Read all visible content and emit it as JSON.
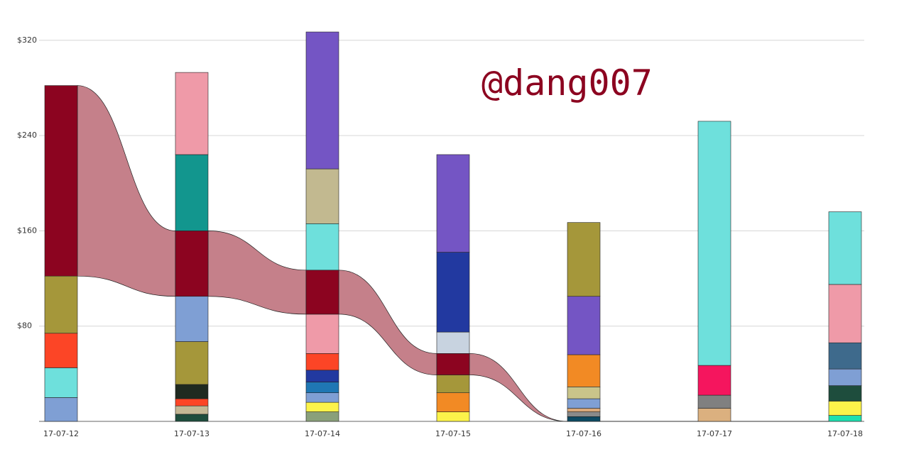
{
  "chart_data": {
    "type": "stacked-bar",
    "watermark": "@dang007",
    "categories": [
      "17-07-12",
      "17-07-13",
      "17-07-14",
      "17-07-15",
      "17-07-16",
      "17-07-17",
      "17-07-18"
    ],
    "stacks": [
      [
        {
          "color": "#7f9fd4",
          "value": 20
        },
        {
          "color": "#6ee0dc",
          "value": 25
        },
        {
          "color": "#fc4526",
          "value": 29
        },
        {
          "color": "#a5973a",
          "value": 48
        },
        {
          "color": "#8c0420",
          "value": 160
        }
      ],
      [
        {
          "color": "#1e4d3d",
          "value": 6
        },
        {
          "color": "#c4b895",
          "value": 7
        },
        {
          "color": "#fc4526",
          "value": 6
        },
        {
          "color": "#1f2a20",
          "value": 12
        },
        {
          "color": "#a5973a",
          "value": 36
        },
        {
          "color": "#7f9fd4",
          "value": 38
        },
        {
          "color": "#8c0420",
          "value": 55
        },
        {
          "color": "#12968e",
          "value": 64
        },
        {
          "color": "#ef9aa8",
          "value": 69
        }
      ],
      [
        {
          "color": "#8aa07a",
          "value": 8
        },
        {
          "color": "#fcf34a",
          "value": 8
        },
        {
          "color": "#7f9fd4",
          "value": 8
        },
        {
          "color": "#1f77b4",
          "value": 9
        },
        {
          "color": "#2239a0",
          "value": 10
        },
        {
          "color": "#fc4526",
          "value": 14
        },
        {
          "color": "#ef9aa8",
          "value": 33
        },
        {
          "color": "#8c0420",
          "value": 37
        },
        {
          "color": "#6ee0dc",
          "value": 39
        },
        {
          "color": "#c2b990",
          "value": 46
        },
        {
          "color": "#7455c4",
          "value": 115
        }
      ],
      [
        {
          "color": "#fcf34a",
          "value": 8
        },
        {
          "color": "#f28a24",
          "value": 16
        },
        {
          "color": "#a5973a",
          "value": 15
        },
        {
          "color": "#8c0420",
          "value": 18
        },
        {
          "color": "#c8d3e0",
          "value": 18
        },
        {
          "color": "#2239a0",
          "value": 67
        },
        {
          "color": "#7455c4",
          "value": 82
        }
      ],
      [
        {
          "color": "#0d4a63",
          "value": 4
        },
        {
          "color": "#8a8a8a",
          "value": 4
        },
        {
          "color": "#d9a87a",
          "value": 3
        },
        {
          "color": "#7f9fd4",
          "value": 8
        },
        {
          "color": "#c9c48a",
          "value": 10
        },
        {
          "color": "#f28a24",
          "value": 27
        },
        {
          "color": "#7455c4",
          "value": 49
        },
        {
          "color": "#a5973a",
          "value": 62
        }
      ],
      [
        {
          "color": "#dbb07f",
          "value": 11
        },
        {
          "color": "#808080",
          "value": 11
        },
        {
          "color": "#f5155e",
          "value": 25
        },
        {
          "color": "#6ee0dc",
          "value": 205
        }
      ],
      [
        {
          "color": "#1ee0b0",
          "value": 5
        },
        {
          "color": "#fcf34a",
          "value": 12
        },
        {
          "color": "#1e4d3d",
          "value": 13
        },
        {
          "color": "#7f9fd4",
          "value": 14
        },
        {
          "color": "#3e6a8c",
          "value": 22
        },
        {
          "color": "#ef9aa8",
          "value": 49
        },
        {
          "color": "#6ee0dc",
          "value": 61
        }
      ]
    ],
    "flow_color": "#8c0420",
    "flow_fill": "#c5808a",
    "ylim": [
      0,
      330
    ],
    "yticks": [
      {
        "value": 80,
        "label": "$80"
      },
      {
        "value": 160,
        "label": "$160"
      },
      {
        "value": 240,
        "label": "$240"
      },
      {
        "value": 320,
        "label": "$320"
      }
    ],
    "grid": true
  }
}
